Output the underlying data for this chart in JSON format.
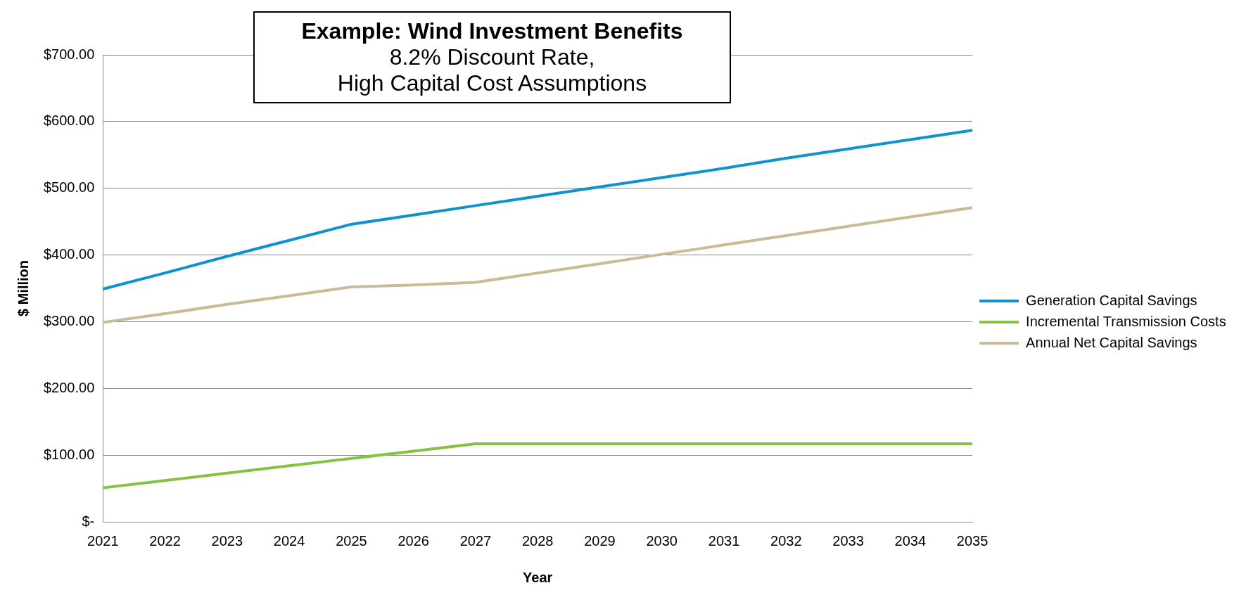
{
  "chart_data": {
    "type": "line",
    "title": "Example: Wind Investment Benefits",
    "subtitle": "8.2% Discount Rate,\nHigh Capital Cost Assumptions",
    "xlabel": "Year",
    "ylabel": "$ Million",
    "categories": [
      "2021",
      "2022",
      "2023",
      "2024",
      "2025",
      "2026",
      "2027",
      "2028",
      "2029",
      "2030",
      "2031",
      "2032",
      "2033",
      "2034",
      "2035"
    ],
    "series": [
      {
        "name": "Generation Capital Savings",
        "color": "#0f92ce",
        "values": [
          349,
          373,
          398,
          422,
          446,
          460,
          474,
          488,
          502,
          516,
          530,
          545,
          559,
          573,
          587
        ]
      },
      {
        "name": "Incremental Transmission Costs",
        "color": "#82c341",
        "values": [
          51,
          62,
          73,
          84,
          95,
          106,
          117,
          117,
          117,
          117,
          117,
          117,
          117,
          117,
          117
        ]
      },
      {
        "name": "Annual Net Capital Savings",
        "color": "#c8bc96",
        "values": [
          299,
          312,
          326,
          339,
          352,
          355,
          359,
          373,
          387,
          401,
          415,
          429,
          443,
          457,
          471
        ]
      }
    ],
    "ylim": [
      0,
      700
    ],
    "yticks": [
      {
        "value": 0,
        "label": "$-"
      },
      {
        "value": 100,
        "label": "$100.00"
      },
      {
        "value": 200,
        "label": "$200.00"
      },
      {
        "value": 300,
        "label": "$300.00"
      },
      {
        "value": 400,
        "label": "$400.00"
      },
      {
        "value": 500,
        "label": "$500.00"
      },
      {
        "value": 600,
        "label": "$600.00"
      },
      {
        "value": 700,
        "label": "$700.00"
      }
    ],
    "grid": "y",
    "legend": "right",
    "marker": "none",
    "line_style": "solid"
  }
}
